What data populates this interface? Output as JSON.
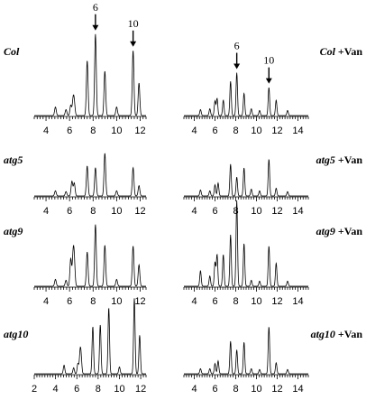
{
  "panels": [
    {
      "label": "Col",
      "suffix": "",
      "arrows": [
        {
          "text": "6",
          "x": 8.2
        },
        {
          "text": "10",
          "x": 11.4
        }
      ],
      "ticks": [
        "4",
        "6",
        "8",
        "10",
        "12"
      ],
      "xrange": [
        3,
        12.5
      ],
      "peaks": [
        [
          4.8,
          0.1
        ],
        [
          5.7,
          0.07
        ],
        [
          6.1,
          0.12
        ],
        [
          6.3,
          0.17
        ],
        [
          6.4,
          0.14
        ],
        [
          7.5,
          0.64
        ],
        [
          8.2,
          0.95
        ],
        [
          9.0,
          0.52
        ],
        [
          10.0,
          0.1
        ],
        [
          11.4,
          0.76
        ],
        [
          11.9,
          0.38
        ]
      ]
    },
    {
      "label": "Col",
      "suffix": " +Van",
      "arrows": [
        {
          "text": "6",
          "x": 8.1
        },
        {
          "text": "10",
          "x": 11.2
        }
      ],
      "ticks": [
        "4",
        "6",
        "8",
        "10",
        "12",
        "14"
      ],
      "xrange": [
        3,
        15
      ],
      "peaks": [
        [
          4.6,
          0.07
        ],
        [
          5.5,
          0.08
        ],
        [
          6.0,
          0.17
        ],
        [
          6.2,
          0.2
        ],
        [
          6.8,
          0.18
        ],
        [
          7.5,
          0.4
        ],
        [
          8.1,
          0.5
        ],
        [
          8.8,
          0.26
        ],
        [
          9.5,
          0.08
        ],
        [
          10.3,
          0.06
        ],
        [
          11.2,
          0.33
        ],
        [
          11.9,
          0.18
        ],
        [
          13.0,
          0.06
        ]
      ]
    },
    {
      "label": "atg5",
      "suffix": "",
      "arrows": [],
      "ticks": [
        "4",
        "6",
        "8",
        "10",
        "12"
      ],
      "xrange": [
        3,
        12.5
      ],
      "peaks": [
        [
          4.8,
          0.06
        ],
        [
          5.7,
          0.05
        ],
        [
          6.2,
          0.17
        ],
        [
          6.4,
          0.15
        ],
        [
          7.5,
          0.35
        ],
        [
          8.2,
          0.33
        ],
        [
          9.0,
          0.5
        ],
        [
          10.0,
          0.06
        ],
        [
          11.4,
          0.33
        ],
        [
          11.9,
          0.12
        ]
      ]
    },
    {
      "label": "atg5",
      "suffix": " +Van",
      "arrows": [],
      "ticks": [
        "4",
        "6",
        "8",
        "10",
        "12",
        "14"
      ],
      "xrange": [
        3,
        15
      ],
      "peaks": [
        [
          4.6,
          0.07
        ],
        [
          5.5,
          0.06
        ],
        [
          6.0,
          0.13
        ],
        [
          6.3,
          0.15
        ],
        [
          7.5,
          0.37
        ],
        [
          8.1,
          0.22
        ],
        [
          8.8,
          0.33
        ],
        [
          9.5,
          0.08
        ],
        [
          10.3,
          0.06
        ],
        [
          11.2,
          0.43
        ],
        [
          11.9,
          0.09
        ],
        [
          13.0,
          0.05
        ]
      ]
    },
    {
      "label": "atg9",
      "suffix": "",
      "arrows": [],
      "ticks": [
        "4",
        "6",
        "8",
        "10",
        "12"
      ],
      "xrange": [
        3,
        12.5
      ],
      "peaks": [
        [
          4.8,
          0.08
        ],
        [
          5.7,
          0.07
        ],
        [
          6.1,
          0.32
        ],
        [
          6.3,
          0.33
        ],
        [
          6.4,
          0.28
        ],
        [
          7.5,
          0.4
        ],
        [
          8.2,
          0.72
        ],
        [
          9.0,
          0.48
        ],
        [
          10.0,
          0.08
        ],
        [
          11.4,
          0.47
        ],
        [
          11.9,
          0.25
        ]
      ]
    },
    {
      "label": "atg9",
      "suffix": " +Van",
      "arrows": [],
      "ticks": [
        "4",
        "6",
        "8",
        "10",
        "12",
        "14"
      ],
      "xrange": [
        3,
        15
      ],
      "peaks": [
        [
          4.6,
          0.18
        ],
        [
          5.5,
          0.12
        ],
        [
          6.0,
          0.28
        ],
        [
          6.2,
          0.37
        ],
        [
          6.8,
          0.37
        ],
        [
          7.5,
          0.6
        ],
        [
          8.1,
          1.0
        ],
        [
          8.8,
          0.5
        ],
        [
          9.5,
          0.07
        ],
        [
          10.3,
          0.06
        ],
        [
          11.2,
          0.47
        ],
        [
          11.9,
          0.27
        ],
        [
          13.0,
          0.06
        ]
      ]
    },
    {
      "label": "atg10",
      "suffix": "",
      "arrows": [],
      "ticks": [
        "2",
        "4",
        "6",
        "8",
        "10",
        "12"
      ],
      "xrange": [
        2,
        12.5
      ],
      "peaks": [
        [
          4.8,
          0.1
        ],
        [
          5.7,
          0.07
        ],
        [
          6.1,
          0.12
        ],
        [
          6.3,
          0.22
        ],
        [
          6.4,
          0.18
        ],
        [
          7.5,
          0.55
        ],
        [
          8.2,
          0.57
        ],
        [
          9.0,
          0.77
        ],
        [
          10.0,
          0.08
        ],
        [
          11.4,
          0.88
        ],
        [
          11.9,
          0.45
        ]
      ]
    },
    {
      "label": "atg10",
      "suffix": " +Van",
      "arrows": [],
      "ticks": [
        "4",
        "6",
        "8",
        "10",
        "12",
        "14"
      ],
      "xrange": [
        3,
        15
      ],
      "peaks": [
        [
          4.6,
          0.06
        ],
        [
          5.5,
          0.06
        ],
        [
          6.0,
          0.12
        ],
        [
          6.3,
          0.15
        ],
        [
          7.5,
          0.38
        ],
        [
          8.1,
          0.28
        ],
        [
          8.8,
          0.37
        ],
        [
          9.5,
          0.06
        ],
        [
          10.3,
          0.05
        ],
        [
          11.2,
          0.55
        ],
        [
          11.9,
          0.13
        ],
        [
          13.0,
          0.05
        ]
      ]
    }
  ],
  "chart_data": {
    "type": "line",
    "xlabel": "",
    "ylabel": "",
    "series": [
      {
        "name": "Col",
        "peak_x": [
          4.8,
          5.7,
          6.1,
          6.3,
          6.4,
          7.5,
          8.2,
          9.0,
          10.0,
          11.4,
          11.9
        ],
        "peak_height": [
          0.1,
          0.07,
          0.12,
          0.17,
          0.14,
          0.64,
          0.95,
          0.52,
          0.1,
          0.76,
          0.38
        ]
      },
      {
        "name": "Col +Van",
        "peak_x": [
          4.6,
          5.5,
          6.0,
          6.2,
          6.8,
          7.5,
          8.1,
          8.8,
          9.5,
          10.3,
          11.2,
          11.9,
          13.0
        ],
        "peak_height": [
          0.07,
          0.08,
          0.17,
          0.2,
          0.18,
          0.4,
          0.5,
          0.26,
          0.08,
          0.06,
          0.33,
          0.18,
          0.06
        ]
      },
      {
        "name": "atg5",
        "peak_x": [
          4.8,
          5.7,
          6.2,
          6.4,
          7.5,
          8.2,
          9.0,
          10.0,
          11.4,
          11.9
        ],
        "peak_height": [
          0.06,
          0.05,
          0.17,
          0.15,
          0.35,
          0.33,
          0.5,
          0.06,
          0.33,
          0.12
        ]
      },
      {
        "name": "atg5 +Van",
        "peak_x": [
          4.6,
          5.5,
          6.0,
          6.3,
          7.5,
          8.1,
          8.8,
          9.5,
          10.3,
          11.2,
          11.9,
          13.0
        ],
        "peak_height": [
          0.07,
          0.06,
          0.13,
          0.15,
          0.37,
          0.22,
          0.33,
          0.08,
          0.06,
          0.43,
          0.09,
          0.05
        ]
      },
      {
        "name": "atg9",
        "peak_x": [
          4.8,
          5.7,
          6.1,
          6.3,
          6.4,
          7.5,
          8.2,
          9.0,
          10.0,
          11.4,
          11.9
        ],
        "peak_height": [
          0.08,
          0.07,
          0.32,
          0.33,
          0.28,
          0.4,
          0.72,
          0.48,
          0.08,
          0.47,
          0.25
        ]
      },
      {
        "name": "atg9 +Van",
        "peak_x": [
          4.6,
          5.5,
          6.0,
          6.2,
          6.8,
          7.5,
          8.1,
          8.8,
          9.5,
          10.3,
          11.2,
          11.9,
          13.0
        ],
        "peak_height": [
          0.18,
          0.12,
          0.28,
          0.37,
          0.37,
          0.6,
          1.0,
          0.5,
          0.07,
          0.06,
          0.47,
          0.27,
          0.06
        ]
      },
      {
        "name": "atg10",
        "peak_x": [
          4.8,
          5.7,
          6.1,
          6.3,
          6.4,
          7.5,
          8.2,
          9.0,
          10.0,
          11.4,
          11.9
        ],
        "peak_height": [
          0.1,
          0.07,
          0.12,
          0.22,
          0.18,
          0.55,
          0.57,
          0.77,
          0.08,
          0.88,
          0.45
        ]
      },
      {
        "name": "atg10 +Van",
        "peak_x": [
          4.6,
          5.5,
          6.0,
          6.3,
          7.5,
          8.1,
          8.8,
          9.5,
          10.3,
          11.2,
          11.9,
          13.0
        ],
        "peak_height": [
          0.06,
          0.06,
          0.12,
          0.15,
          0.38,
          0.28,
          0.37,
          0.06,
          0.05,
          0.55,
          0.13,
          0.05
        ]
      }
    ],
    "annotations": [
      {
        "panel": "Col",
        "text": "6",
        "x": 8.2
      },
      {
        "panel": "Col",
        "text": "10",
        "x": 11.4
      },
      {
        "panel": "Col +Van",
        "text": "6",
        "x": 8.1
      },
      {
        "panel": "Col +Van",
        "text": "10",
        "x": 11.2
      }
    ],
    "grid": false
  }
}
